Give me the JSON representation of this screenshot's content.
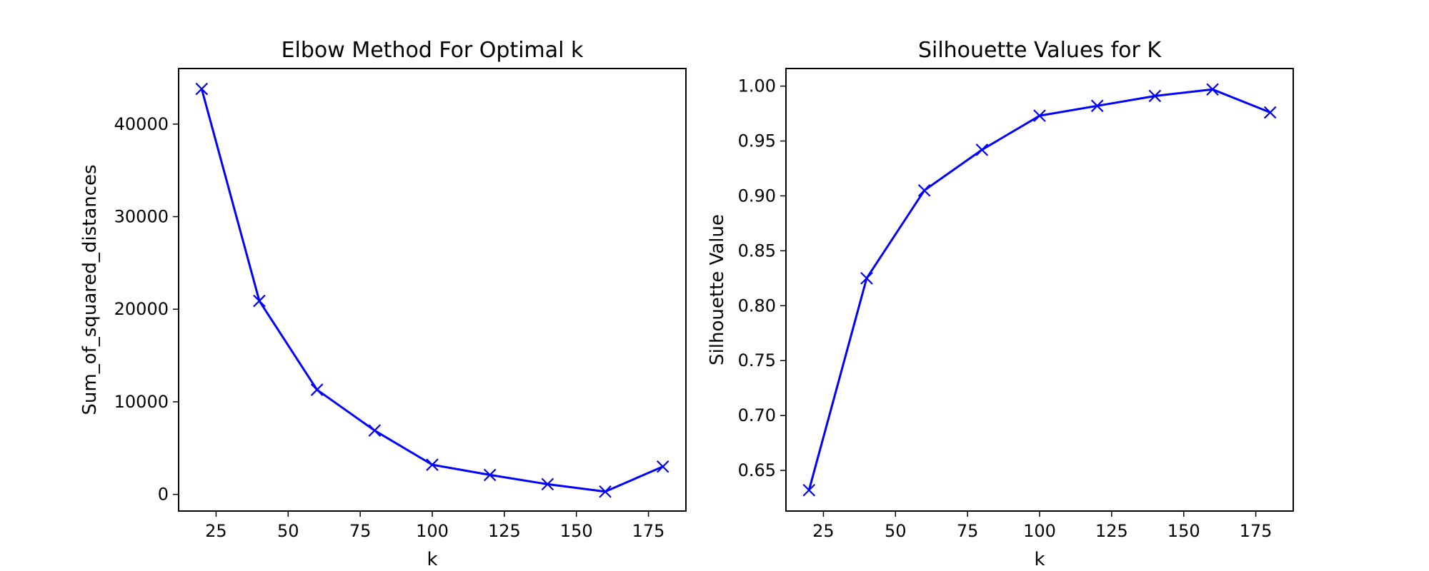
{
  "chart_data": [
    {
      "type": "line",
      "title": "Elbow Method For Optimal k",
      "xlabel": "k",
      "ylabel": "Sum_of_squared_distances",
      "xlim": [
        12,
        188
      ],
      "ylim": [
        -1800,
        46000
      ],
      "xticks": [
        25,
        50,
        75,
        100,
        125,
        150,
        175
      ],
      "yticks": [
        0,
        10000,
        20000,
        30000,
        40000
      ],
      "grid": false,
      "line_color": "#0000ff",
      "marker": "x",
      "x": [
        20,
        40,
        60,
        80,
        100,
        120,
        140,
        160,
        180
      ],
      "y": [
        43800,
        20900,
        11300,
        6900,
        3200,
        2100,
        1100,
        300,
        3000
      ]
    },
    {
      "type": "line",
      "title": "Silhouette Values for K",
      "xlabel": "k",
      "ylabel": "Silhouette Value",
      "xlim": [
        12,
        188
      ],
      "ylim": [
        0.613,
        1.016
      ],
      "xticks": [
        25,
        50,
        75,
        100,
        125,
        150,
        175
      ],
      "yticks": [
        0.65,
        0.7,
        0.75,
        0.8,
        0.85,
        0.9,
        0.95,
        1.0
      ],
      "yticklabels": [
        "0.65",
        "0.70",
        "0.75",
        "0.80",
        "0.85",
        "0.90",
        "0.95",
        "1.00"
      ],
      "grid": false,
      "line_color": "#0000ff",
      "marker": "x",
      "x": [
        20,
        40,
        60,
        80,
        100,
        120,
        140,
        160,
        180
      ],
      "y": [
        0.632,
        0.825,
        0.905,
        0.942,
        0.973,
        0.982,
        0.991,
        0.997,
        0.976
      ]
    }
  ]
}
